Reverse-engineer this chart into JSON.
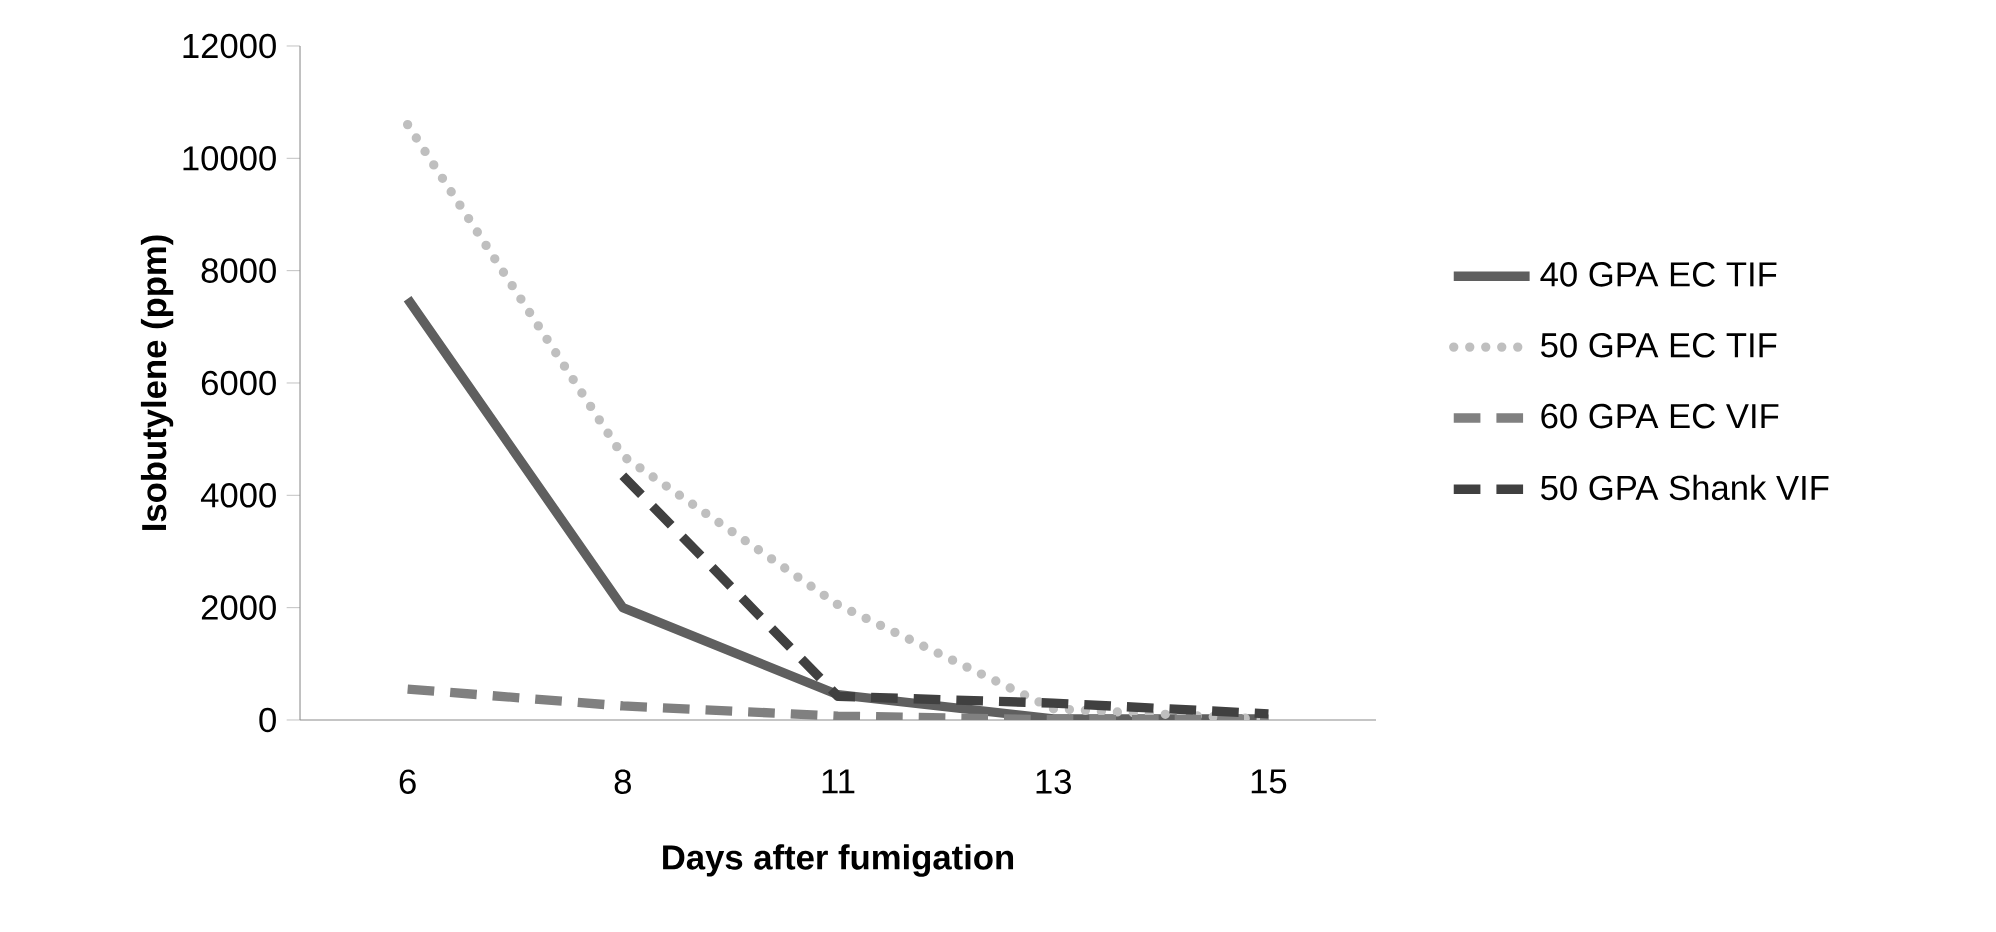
{
  "chart_data": {
    "type": "line",
    "xlabel": "Days after fumigation",
    "ylabel": "Isobutylene (ppm)",
    "categories": [
      "6",
      "8",
      "11",
      "13",
      "15"
    ],
    "series": [
      {
        "name": "40 GPA EC TIF",
        "color": "#5f5f5f",
        "line_style": "solid",
        "values": [
          7500,
          2000,
          450,
          20,
          20
        ]
      },
      {
        "name": "50 GPA EC TIF",
        "color": "#bfbfbf",
        "line_style": "dotted",
        "values": [
          10600,
          4700,
          2050,
          200,
          10
        ]
      },
      {
        "name": "60 GPA EC VIF",
        "color": "#808080",
        "line_style": "dashed",
        "values": [
          550,
          250,
          70,
          5,
          5
        ]
      },
      {
        "name": "50 GPA Shank VIF",
        "color": "#404040",
        "line_style": "dashed",
        "values": [
          null,
          4350,
          420,
          300,
          110
        ]
      }
    ],
    "ylim": [
      0,
      12000
    ],
    "yticks": [
      0,
      2000,
      4000,
      6000,
      8000,
      10000,
      12000
    ],
    "grid": false,
    "legend": "right"
  }
}
